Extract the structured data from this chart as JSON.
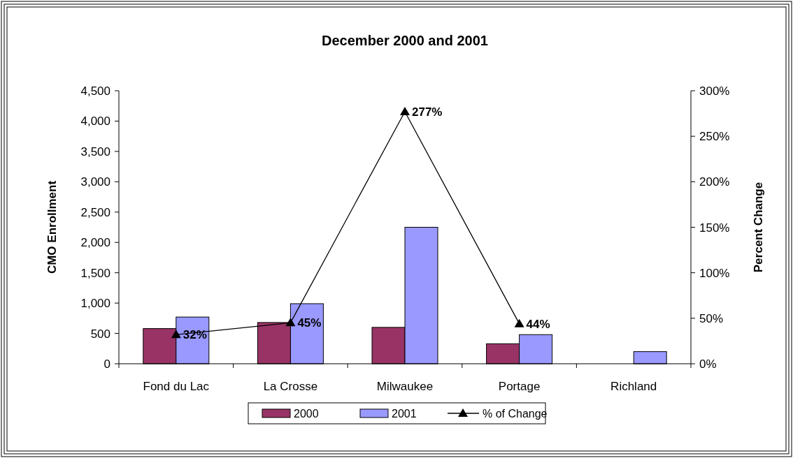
{
  "chart_data": {
    "type": "bar",
    "title": "December 2000 and 2001",
    "ylabel": "CMO Enrollment",
    "y2label": "Percent Change",
    "categories": [
      "Fond du Lac",
      "La Crosse",
      "Milwaukee",
      "Portage",
      "Richland"
    ],
    "series": [
      {
        "name": "2000",
        "color": "#993366",
        "values": [
          580,
          680,
          600,
          330,
          null
        ]
      },
      {
        "name": "2001",
        "color": "#9999ff",
        "values": [
          770,
          990,
          2250,
          480,
          200
        ]
      },
      {
        "name": "% of Change",
        "type": "line",
        "axis": "y2",
        "color": "#000000",
        "marker": "triangle",
        "values": [
          32,
          45,
          277,
          44,
          null
        ],
        "value_labels": [
          "32%",
          "45%",
          "277%",
          "44%",
          null
        ]
      }
    ],
    "ylim": [
      0,
      4500
    ],
    "yticks": [
      {
        "value": 0,
        "label": "0"
      },
      {
        "value": 500,
        "label": "500"
      },
      {
        "value": 1000,
        "label": "1,000"
      },
      {
        "value": 1500,
        "label": "1,500"
      },
      {
        "value": 2000,
        "label": "2,000"
      },
      {
        "value": 2500,
        "label": "2,500"
      },
      {
        "value": 3000,
        "label": "3,000"
      },
      {
        "value": 3500,
        "label": "3,500"
      },
      {
        "value": 4000,
        "label": "4,000"
      },
      {
        "value": 4500,
        "label": "4,500"
      }
    ],
    "y2lim": [
      0,
      300
    ],
    "y2ticks": [
      {
        "value": 0,
        "label": "0%"
      },
      {
        "value": 50,
        "label": "50%"
      },
      {
        "value": 100,
        "label": "100%"
      },
      {
        "value": 150,
        "label": "150%"
      },
      {
        "value": 200,
        "label": "200%"
      },
      {
        "value": 250,
        "label": "250%"
      },
      {
        "value": 300,
        "label": "300%"
      }
    ],
    "legend": "bottom",
    "grid": false
  }
}
